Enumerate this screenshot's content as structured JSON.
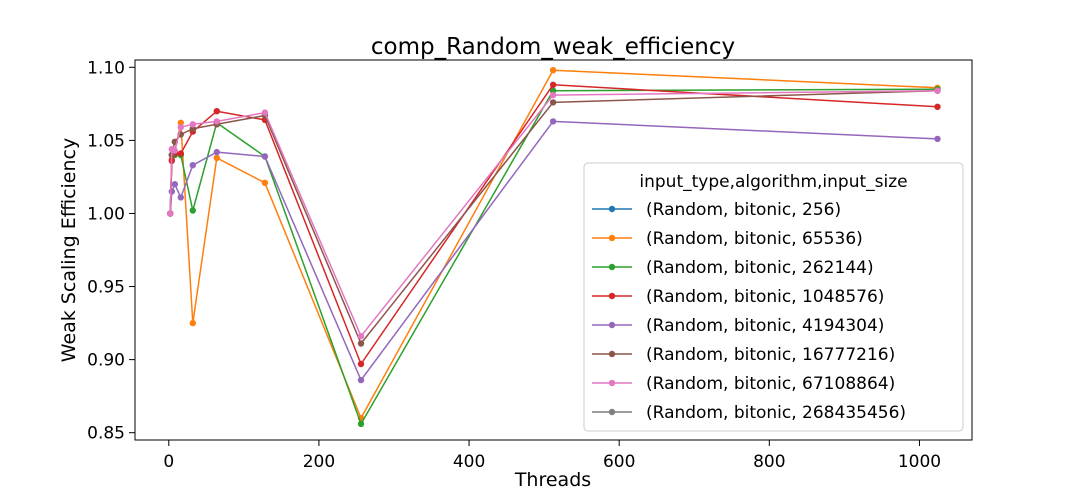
{
  "chart_data": {
    "type": "line",
    "title": "comp_Random_weak_efficiency",
    "xlabel": "Threads",
    "ylabel": "Weak Scaling Efficiency",
    "xlim": [
      -45,
      1070
    ],
    "ylim": [
      0.845,
      1.105
    ],
    "xticks": [
      0,
      200,
      400,
      600,
      800,
      1000
    ],
    "xtick_labels": [
      "0",
      "200",
      "400",
      "600",
      "800",
      "1000"
    ],
    "yticks": [
      0.85,
      0.9,
      0.95,
      1.0,
      1.05,
      1.1
    ],
    "ytick_labels": [
      "0.85",
      "0.90",
      "0.95",
      "1.00",
      "1.05",
      "1.10"
    ],
    "grid": false,
    "legend": {
      "title": "input_type,algorithm,input_size",
      "placement": "center-right"
    },
    "x": [
      2,
      4,
      8,
      16,
      32,
      64,
      128,
      256,
      512,
      1024
    ],
    "series": [
      {
        "name": "(Random, bitonic, 256)",
        "color": "#1f77b4",
        "values": [
          null,
          null,
          null,
          null,
          null,
          null,
          null,
          null,
          null,
          null
        ]
      },
      {
        "name": "(Random, bitonic, 65536)",
        "color": "#ff7f0e",
        "values": [
          1.0,
          1.037,
          1.042,
          1.062,
          0.925,
          1.038,
          1.021,
          0.86,
          1.098,
          1.086
        ]
      },
      {
        "name": "(Random, bitonic, 262144)",
        "color": "#2ca02c",
        "values": [
          1.0,
          1.04,
          1.04,
          1.04,
          1.002,
          1.062,
          1.039,
          0.856,
          1.084,
          1.085
        ]
      },
      {
        "name": "(Random, bitonic, 1048576)",
        "color": "#d62728",
        "values": [
          1.0,
          1.036,
          1.041,
          1.041,
          1.056,
          1.07,
          1.064,
          0.897,
          1.088,
          1.073
        ]
      },
      {
        "name": "(Random, bitonic, 4194304)",
        "color": "#9467bd",
        "values": [
          1.0,
          1.015,
          1.02,
          1.011,
          1.033,
          1.042,
          1.039,
          0.886,
          1.063,
          1.051
        ]
      },
      {
        "name": "(Random, bitonic, 16777216)",
        "color": "#8c564b",
        "values": [
          1.0,
          1.04,
          1.049,
          1.054,
          1.058,
          1.061,
          1.067,
          0.911,
          1.076,
          1.084
        ]
      },
      {
        "name": "(Random, bitonic, 67108864)",
        "color": "#e377c2",
        "values": [
          1.0,
          1.044,
          1.043,
          1.059,
          1.061,
          1.063,
          1.069,
          0.916,
          1.081,
          1.084
        ]
      },
      {
        "name": "(Random, bitonic, 268435456)",
        "color": "#7f7f7f",
        "values": [
          null,
          null,
          null,
          null,
          null,
          null,
          null,
          null,
          null,
          null
        ]
      }
    ]
  }
}
